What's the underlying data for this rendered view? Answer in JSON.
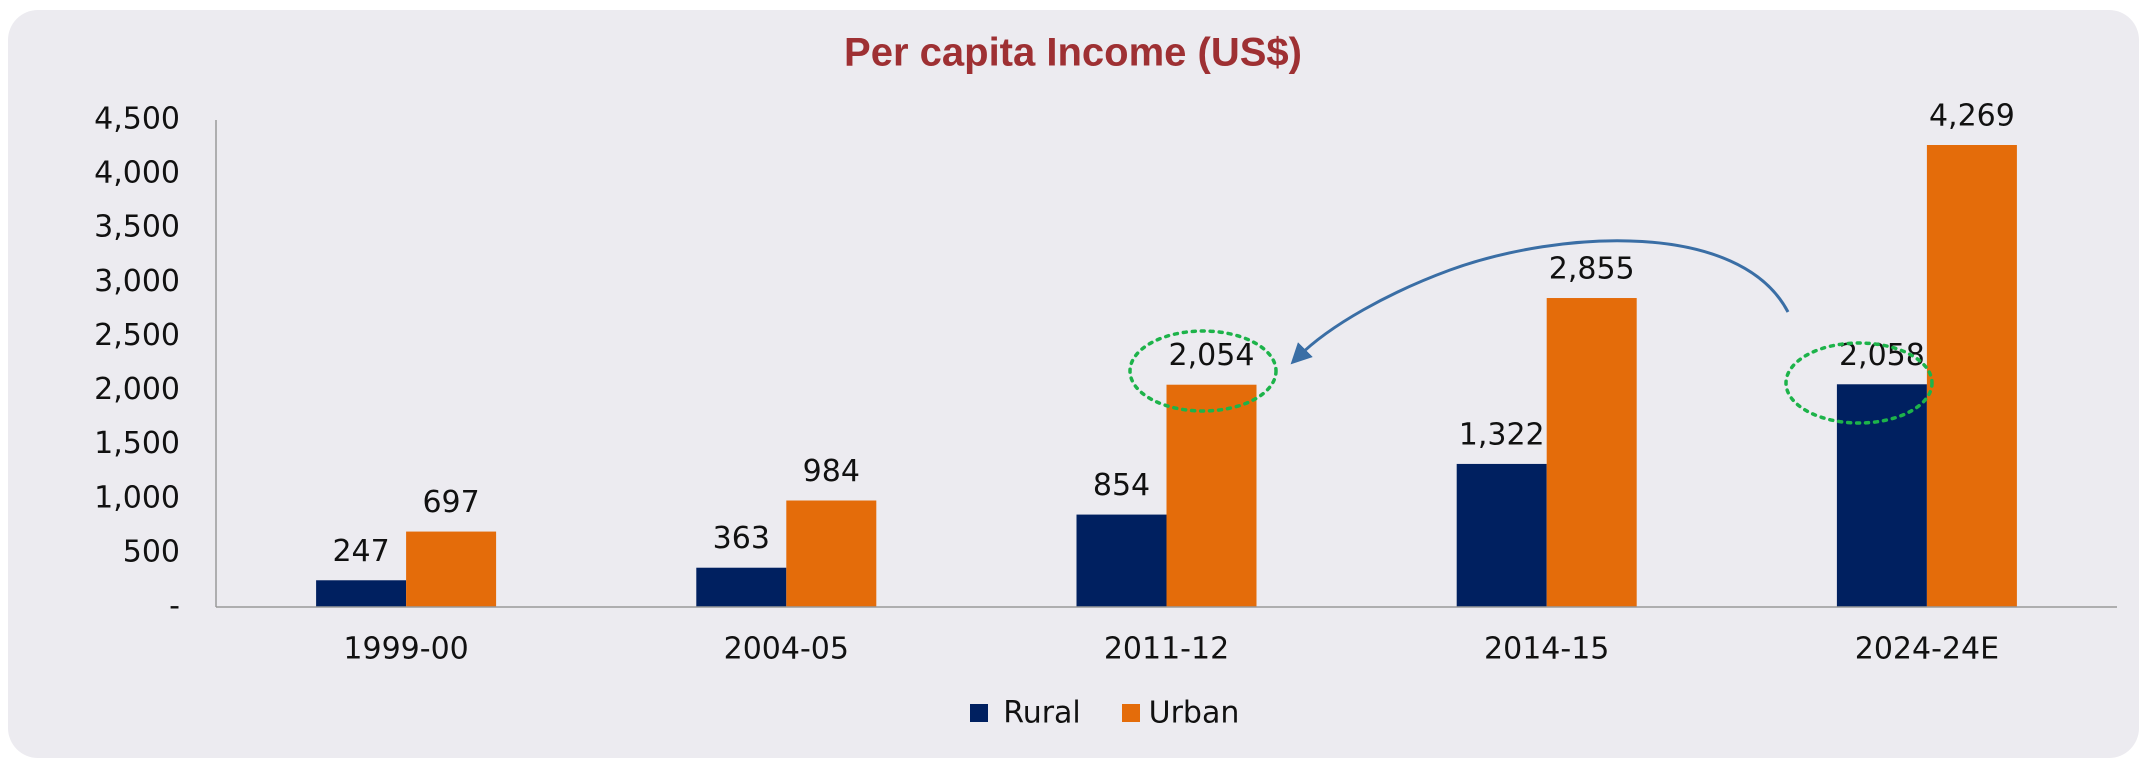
{
  "chart_data": {
    "type": "bar",
    "title": "Per capita Income (US$)",
    "categories": [
      "1999-00",
      "2004-05",
      "2011-12",
      "2014-15",
      "2024-24E"
    ],
    "series": [
      {
        "name": "Rural",
        "color": "#002060",
        "values": [
          247,
          363,
          854,
          1322,
          2058
        ],
        "value_labels": [
          "247",
          "363",
          "854",
          "1,322",
          "2,058"
        ]
      },
      {
        "name": "Urban",
        "color": "#e46c0a",
        "values": [
          697,
          984,
          2054,
          2855,
          4269
        ],
        "value_labels": [
          "697",
          "984",
          "2,054",
          "2,855",
          "4,269"
        ]
      }
    ],
    "ylim": [
      0,
      4500
    ],
    "yticks": [
      {
        "value": 0,
        "label": "-"
      },
      500,
      {
        "value": 1000,
        "label": "1,000"
      },
      {
        "value": 1500,
        "label": "1,500"
      },
      {
        "value": 2000,
        "label": "2,000"
      },
      {
        "value": 2500,
        "label": "2,500"
      },
      {
        "value": 3000,
        "label": "3,000"
      },
      {
        "value": 3500,
        "label": "3,500"
      },
      {
        "value": 4000,
        "label": "4,000"
      },
      {
        "value": 4500,
        "label": "4,500"
      }
    ],
    "grid": false,
    "legend": "bottom"
  }
}
